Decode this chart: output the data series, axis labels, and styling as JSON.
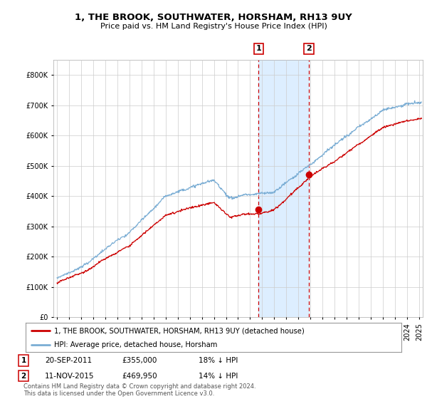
{
  "title": "1, THE BROOK, SOUTHWATER, HORSHAM, RH13 9UY",
  "subtitle": "Price paid vs. HM Land Registry's House Price Index (HPI)",
  "legend_label_red": "1, THE BROOK, SOUTHWATER, HORSHAM, RH13 9UY (detached house)",
  "legend_label_blue": "HPI: Average price, detached house, Horsham",
  "transaction1_label": "1",
  "transaction1_date": "20-SEP-2011",
  "transaction1_price": "£355,000",
  "transaction1_hpi": "18% ↓ HPI",
  "transaction2_label": "2",
  "transaction2_date": "11-NOV-2015",
  "transaction2_price": "£469,950",
  "transaction2_hpi": "14% ↓ HPI",
  "footnote": "Contains HM Land Registry data © Crown copyright and database right 2024.\nThis data is licensed under the Open Government Licence v3.0.",
  "red_color": "#cc0000",
  "blue_color": "#7aadd4",
  "highlight_box_color": "#ddeeff",
  "sale1_year": 2011.708,
  "sale2_year": 2015.875,
  "sale1_price": 355000,
  "sale2_price": 469950,
  "ylim": [
    0,
    850000
  ],
  "yticks": [
    0,
    100000,
    200000,
    300000,
    400000,
    500000,
    600000,
    700000,
    800000
  ],
  "ytick_labels": [
    "£0",
    "£100K",
    "£200K",
    "£300K",
    "£400K",
    "£500K",
    "£600K",
    "£700K",
    "£800K"
  ],
  "xlim_start": 1995.0,
  "xlim_end": 2025.3,
  "background_color": "#ffffff",
  "grid_color": "#cccccc"
}
